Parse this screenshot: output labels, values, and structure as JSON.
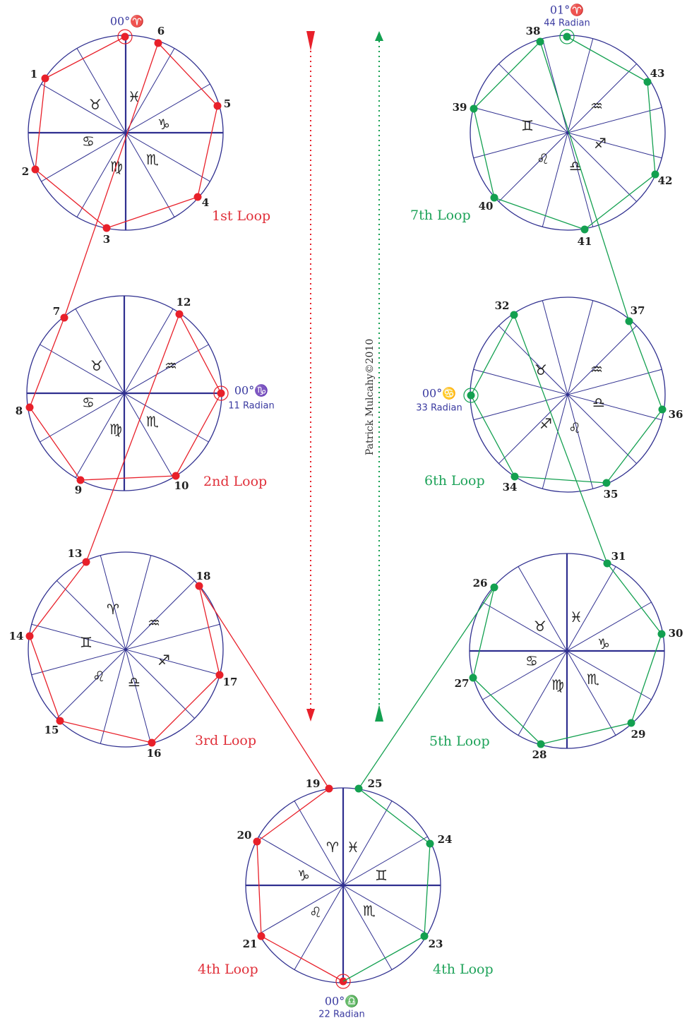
{
  "colors": {
    "wheel": "#2f2f8f",
    "red": "#e8202a",
    "green": "#13a050",
    "label_red": "#e0303a",
    "label_green": "#1fa35a",
    "marker": "#3a3aa0"
  },
  "credit": "Patrick Mulcahy©2010",
  "wheels": [
    {
      "id": "loop1",
      "loop_label": "1st Loop",
      "color": "red",
      "glyphs": [
        "♉",
        "♓",
        "♑",
        "♋",
        "♍",
        "♏"
      ],
      "points": [
        {
          "n": "1"
        },
        {
          "n": "2"
        },
        {
          "n": "3"
        },
        {
          "n": "4"
        },
        {
          "n": "5"
        },
        {
          "n": "6"
        }
      ],
      "marker": {
        "text": "00°♈",
        "sub": ""
      }
    },
    {
      "id": "loop2",
      "loop_label": "2nd Loop",
      "color": "red",
      "glyphs": [
        "♉",
        "♒",
        "♋",
        "♍",
        "♏"
      ],
      "points": [
        {
          "n": "7"
        },
        {
          "n": "8"
        },
        {
          "n": "9"
        },
        {
          "n": "10"
        },
        {
          "n": "12"
        }
      ],
      "marker": {
        "text": "00°♑",
        "sub": "11 Radian"
      }
    },
    {
      "id": "loop3",
      "loop_label": "3rd Loop",
      "color": "red",
      "glyphs": [
        "♈",
        "♒",
        "♊",
        "♐",
        "♌",
        "♎"
      ],
      "points": [
        {
          "n": "13"
        },
        {
          "n": "14"
        },
        {
          "n": "15"
        },
        {
          "n": "16"
        },
        {
          "n": "17"
        },
        {
          "n": "18"
        }
      ],
      "marker": {
        "text": "",
        "sub": ""
      }
    },
    {
      "id": "loop4",
      "loop_label_left": "4th Loop",
      "loop_label_right": "4th Loop",
      "glyphs": [
        "♈",
        "♓",
        "♊",
        "♑",
        "♌",
        "♏"
      ],
      "points": [
        {
          "n": "19"
        },
        {
          "n": "20"
        },
        {
          "n": "21"
        },
        {
          "n": "23"
        },
        {
          "n": "24"
        },
        {
          "n": "25"
        }
      ],
      "marker": {
        "text": "00°♎",
        "sub": "22 Radian"
      }
    },
    {
      "id": "loop5",
      "loop_label": "5th Loop",
      "color": "green",
      "glyphs": [
        "♉",
        "♓",
        "♑",
        "♋",
        "♍",
        "♏"
      ],
      "points": [
        {
          "n": "26"
        },
        {
          "n": "27"
        },
        {
          "n": "28"
        },
        {
          "n": "29"
        },
        {
          "n": "30"
        },
        {
          "n": "31"
        }
      ],
      "marker": {
        "text": "",
        "sub": ""
      }
    },
    {
      "id": "loop6",
      "loop_label": "6th Loop",
      "color": "green",
      "glyphs": [
        "♉",
        "♒",
        "♐",
        "♌",
        "♎"
      ],
      "points": [
        {
          "n": "32"
        },
        {
          "n": "34"
        },
        {
          "n": "35"
        },
        {
          "n": "36"
        },
        {
          "n": "37"
        }
      ],
      "marker": {
        "text": "00°♋",
        "sub": "33 Radian"
      }
    },
    {
      "id": "loop7",
      "loop_label": "7th Loop",
      "color": "green",
      "glyphs": [
        "♊",
        "♒",
        "♐",
        "♌",
        "♎"
      ],
      "points": [
        {
          "n": "38"
        },
        {
          "n": "39"
        },
        {
          "n": "40"
        },
        {
          "n": "41"
        },
        {
          "n": "42"
        },
        {
          "n": "43"
        }
      ],
      "marker": {
        "text": "01°♈",
        "sub": "44 Radian"
      }
    }
  ]
}
